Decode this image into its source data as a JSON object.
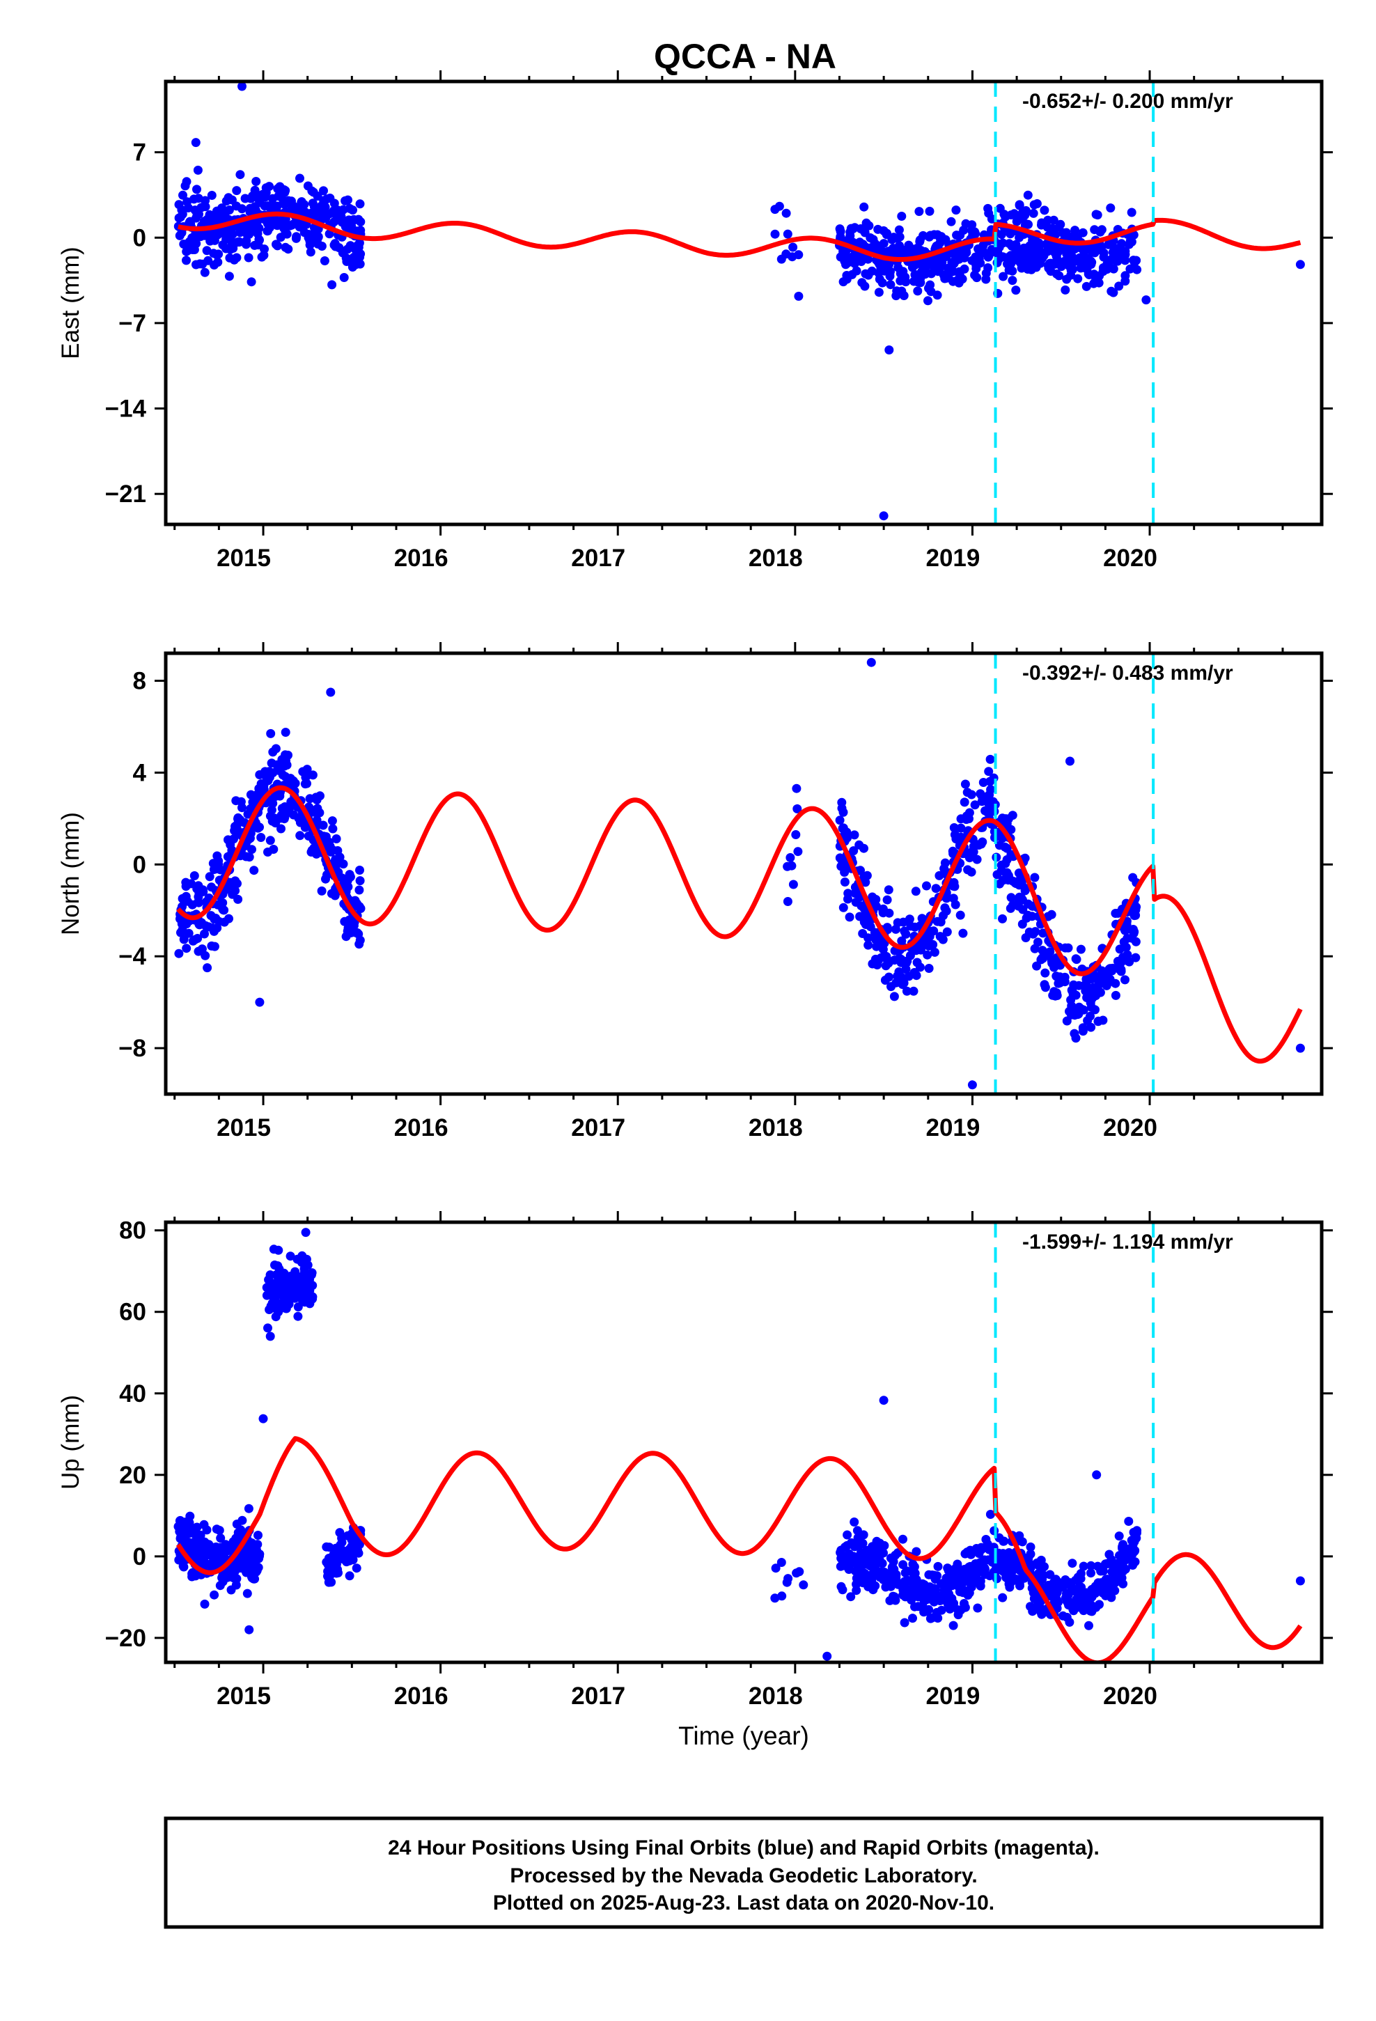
{
  "title": "QCCA - NA",
  "colors": {
    "final_orbits": "#0000ff",
    "model_fit": "#ff0000",
    "offset_line": "#00e8ff",
    "frame": "#000000"
  },
  "marker_icon": "filled-circle",
  "footer": {
    "line1": "24 Hour Positions Using Final Orbits (blue) and Rapid Orbits (magenta).",
    "line2": "Processed by the Nevada Geodetic Laboratory.",
    "line3": "Plotted on 2025-Aug-23. Last data on 2020-Nov-10."
  },
  "chart_data": [
    {
      "type": "scatter",
      "title": "",
      "xlabel": "",
      "ylabel": "East (mm)",
      "xlim": [
        2014.45,
        2020.97
      ],
      "ylim": [
        -23.5,
        12.8
      ],
      "x_ticks": [
        "2015",
        "2016",
        "2017",
        "2018",
        "2019",
        "2020"
      ],
      "y_ticks": [
        "7",
        "0",
        "−7",
        "−14",
        "−21"
      ],
      "y_tick_values": [
        7,
        0,
        -7,
        -14,
        -21
      ],
      "rate_label": "-0.652+/- 0.200 mm/yr",
      "offset_epochs": [
        2019.13,
        2020.02
      ],
      "grid": false,
      "series": [
        {
          "kind": "points",
          "segments": [
            {
              "x0": 2014.52,
              "x1": 2015.55,
              "trend": [
                [
                  2014.52,
                  1.8
                ],
                [
                  2015.0,
                  1.2
                ],
                [
                  2015.55,
                  0.6
                ]
              ],
              "amp": 0.9,
              "phase": 0.2,
              "spread": 1.9,
              "count": 380
            },
            {
              "x0": 2017.88,
              "x1": 2018.05,
              "trend": [
                [
                  2017.88,
                  -1.0
                ],
                [
                  2018.05,
                  -1.2
                ]
              ],
              "amp": 0.4,
              "phase": 0.0,
              "spread": 1.9,
              "count": 9
            },
            {
              "x0": 2018.25,
              "x1": 2019.93,
              "trend": [
                [
                  2018.25,
                  -1.2
                ],
                [
                  2019.0,
                  -1.3
                ],
                [
                  2019.93,
                  -0.6
                ]
              ],
              "amp": 0.8,
              "phase": 0.2,
              "spread": 1.9,
              "count": 560
            }
          ],
          "extra": [
            [
              2014.88,
              12.4
            ],
            [
              2014.62,
              7.8
            ],
            [
              2018.5,
              -22.8
            ],
            [
              2018.53,
              -9.2
            ],
            [
              2019.98,
              -5.1
            ],
            [
              2020.85,
              -2.2
            ],
            [
              2018.02,
              -4.8
            ],
            [
              2017.95,
              2.0
            ]
          ]
        },
        {
          "kind": "line",
          "x0": 2014.52,
          "x1": 2020.85,
          "trend": [
            [
              2014.52,
              1.6
            ],
            [
              2015.5,
              0.8
            ],
            [
              2016.5,
              0.1
            ],
            [
              2017.5,
              -0.6
            ],
            [
              2018.5,
              -1.0
            ],
            [
              2019.13,
              -0.9
            ],
            [
              2020.02,
              -0.8
            ],
            [
              2020.85,
              -1.9
            ]
          ],
          "amp": 0.8,
          "phase": 0.1,
          "steps": [
            [
              2019.13,
              1.2
            ],
            [
              2020.02,
              0.3
            ]
          ]
        }
      ]
    },
    {
      "type": "scatter",
      "title": "",
      "xlabel": "",
      "ylabel": "North (mm)",
      "xlim": [
        2014.45,
        2020.97
      ],
      "ylim": [
        -10.0,
        9.2
      ],
      "x_ticks": [
        "2015",
        "2016",
        "2017",
        "2018",
        "2019",
        "2020"
      ],
      "y_ticks": [
        "8",
        "4",
        "0",
        "−4",
        "−8"
      ],
      "y_tick_values": [
        8,
        4,
        0,
        -4,
        -8
      ],
      "rate_label": "-0.392+/- 0.483 mm/yr",
      "offset_epochs": [
        2019.13,
        2020.02
      ],
      "grid": false,
      "series": [
        {
          "kind": "points",
          "segments": [
            {
              "x0": 2014.52,
              "x1": 2015.55,
              "trend": [
                [
                  2014.52,
                  0.6
                ],
                [
                  2015.55,
                  0.7
                ]
              ],
              "amp": 2.9,
              "phase": 0.1,
              "spread": 1.3,
              "count": 380
            },
            {
              "x0": 2017.88,
              "x1": 2018.05,
              "trend": [
                [
                  2017.88,
                  -1.0
                ],
                [
                  2018.05,
                  -1.0
                ]
              ],
              "amp": 2.5,
              "phase": 0.1,
              "spread": 1.2,
              "count": 9
            },
            {
              "x0": 2018.25,
              "x1": 2019.13,
              "trend": [
                [
                  2018.25,
                  -0.8
                ],
                [
                  2019.13,
                  -1.0
                ]
              ],
              "amp": 3.2,
              "phase": 0.1,
              "spread": 1.3,
              "count": 300
            },
            {
              "x0": 2019.13,
              "x1": 2019.93,
              "trend": [
                [
                  2019.13,
                  -2.0
                ],
                [
                  2019.93,
                  -3.4
                ]
              ],
              "amp": 2.8,
              "phase": 0.1,
              "spread": 1.3,
              "count": 260
            }
          ],
          "extra": [
            [
              2018.43,
              8.8
            ],
            [
              2019.0,
              -9.6
            ],
            [
              2014.98,
              -6.0
            ],
            [
              2020.85,
              -8.0
            ],
            [
              2015.38,
              7.5
            ],
            [
              2019.55,
              4.5
            ]
          ]
        },
        {
          "kind": "line",
          "x0": 2014.52,
          "x1": 2020.85,
          "trend": [
            [
              2014.52,
              0.6
            ],
            [
              2016.0,
              0.2
            ],
            [
              2017.5,
              -0.2
            ],
            [
              2018.4,
              -0.6
            ],
            [
              2019.13,
              -1.0
            ],
            [
              2020.02,
              -2.6
            ],
            [
              2020.85,
              -4.8
            ]
          ],
          "amp": 2.9,
          "phase": 0.1,
          "steps": [
            [
              2019.13,
              0.0
            ],
            [
              2020.02,
              -1.5
            ]
          ]
        }
      ]
    },
    {
      "type": "scatter",
      "title": "",
      "xlabel": "Time (year)",
      "ylabel": "Up (mm)",
      "xlim": [
        2014.45,
        2020.97
      ],
      "ylim": [
        -26.0,
        82.0
      ],
      "x_ticks": [
        "2015",
        "2016",
        "2017",
        "2018",
        "2019",
        "2020"
      ],
      "y_ticks": [
        "80",
        "60",
        "40",
        "20",
        "0",
        "−20"
      ],
      "y_tick_values": [
        80,
        60,
        40,
        20,
        0,
        -20
      ],
      "rate_label": "-1.599+/- 1.194 mm/yr",
      "offset_epochs": [
        2019.13,
        2020.02
      ],
      "grid": false,
      "series": [
        {
          "kind": "points",
          "segments": [
            {
              "x0": 2014.52,
              "x1": 2014.98,
              "trend": [
                [
                  2014.52,
                  5.0
                ],
                [
                  2014.98,
                  0.0
                ]
              ],
              "amp": 3.0,
              "phase": 0.2,
              "spread": 4.5,
              "count": 230
            },
            {
              "x0": 2015.02,
              "x1": 2015.28,
              "trend": [
                [
                  2015.02,
                  63.0
                ],
                [
                  2015.28,
                  67.0
                ]
              ],
              "amp": 1.5,
              "phase": 0.0,
              "spread": 4.5,
              "count": 140
            },
            {
              "x0": 2015.35,
              "x1": 2015.55,
              "trend": [
                [
                  2015.35,
                  -3.0
                ],
                [
                  2015.55,
                  5.0
                ]
              ],
              "amp": 1.5,
              "phase": 0.0,
              "spread": 4.0,
              "count": 80
            },
            {
              "x0": 2017.88,
              "x1": 2018.05,
              "trend": [
                [
                  2017.88,
                  -6.0
                ],
                [
                  2018.05,
                  -8.0
                ]
              ],
              "amp": 1.0,
              "phase": 0.0,
              "spread": 3.0,
              "count": 9
            },
            {
              "x0": 2018.25,
              "x1": 2019.13,
              "trend": [
                [
                  2018.25,
                  -5.0
                ],
                [
                  2019.13,
                  -3.0
                ]
              ],
              "amp": 4.5,
              "phase": 0.3,
              "spread": 5.0,
              "count": 300
            },
            {
              "x0": 2019.13,
              "x1": 2019.93,
              "trend": [
                [
                  2019.13,
                  -8.0
                ],
                [
                  2019.93,
                  0.0
                ]
              ],
              "amp": 7.0,
              "phase": 0.1,
              "spread": 4.5,
              "count": 260
            }
          ],
          "extra": [
            [
              2015.0,
              33.8
            ],
            [
              2018.5,
              38.3
            ],
            [
              2014.92,
              -18.0
            ],
            [
              2015.24,
              79.5
            ],
            [
              2018.18,
              -24.5
            ],
            [
              2020.85,
              -6.0
            ],
            [
              2015.04,
              54.0
            ],
            [
              2019.7,
              20.0
            ]
          ]
        },
        {
          "kind": "line",
          "x0": 2014.52,
          "x1": 2020.85,
          "trend": [
            [
              2014.52,
              8.0
            ],
            [
              2014.98,
              8.0
            ],
            [
              2015.18,
              17.0
            ],
            [
              2015.5,
              12.0
            ],
            [
              2016.5,
              14.0
            ],
            [
              2017.5,
              13.0
            ],
            [
              2018.2,
              12.0
            ],
            [
              2019.13,
              11.0
            ],
            [
              2019.3,
              -2.0
            ],
            [
              2020.02,
              -4.0
            ],
            [
              2020.85,
              -2.0
            ]
          ],
          "amp": 12.0,
          "phase": 0.2,
          "steps": [
            [
              2019.13,
              -11.0
            ],
            [
              2020.02,
              3.0
            ]
          ]
        }
      ]
    }
  ]
}
